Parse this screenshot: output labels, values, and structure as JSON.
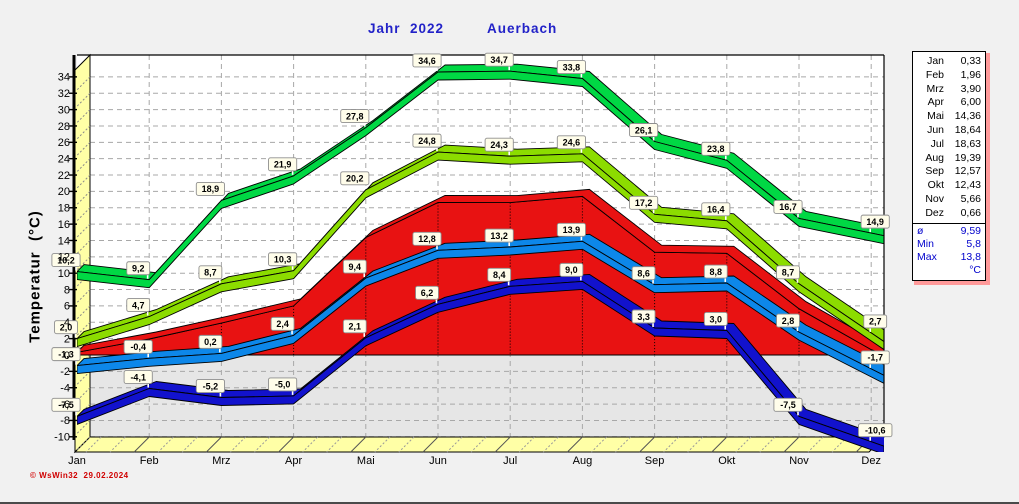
{
  "title": {
    "left": "Jahr  2022",
    "right": "Auerbach"
  },
  "y_axis_title": "Temperatur  (°C)",
  "footer": "© WsWin32  29.02.2024",
  "colors": {
    "title_blue": "#2222c8",
    "legend_stat_blue": "#0000cc",
    "footer_red": "#d00000",
    "abs_max_green": "#00d844",
    "avg_max_green": "#8cdc00",
    "mean_red": "#e81212",
    "avg_min_blue": "#0d87e9",
    "abs_min_blue": "#1212cd",
    "wall_yellow": "#ffffa6",
    "below_zero_gray": "#e6e6e6",
    "grid_gray": "#a8a8a8",
    "label_box_bg": "#fffdea",
    "label_box_border": "#8f8f8f"
  },
  "chart_data": {
    "type": "area",
    "title": "Jahr 2022 Auerbach",
    "xlabel": "",
    "ylabel": "Temperatur (°C)",
    "ylim": [
      -10,
      34
    ],
    "ytick_step": 2,
    "grid": true,
    "legend_position": "right",
    "categories": [
      "Jan",
      "Feb",
      "Mrz",
      "Apr",
      "Mai",
      "Jun",
      "Jul",
      "Aug",
      "Sep",
      "Okt",
      "Nov",
      "Dez"
    ],
    "series": [
      {
        "name": "max",
        "kind": "band",
        "values": [
          10.2,
          9.2,
          18.9,
          21.9,
          27.8,
          34.6,
          34.7,
          33.8,
          26.1,
          23.8,
          16.7,
          14.9
        ],
        "labels": [
          "10,2",
          "9,2",
          "18,9",
          "21,9",
          "27,8",
          "34,6",
          "34,7",
          "33,8",
          "26,1",
          "23,8",
          "16,7",
          "14,9"
        ]
      },
      {
        "name": "avg_max",
        "kind": "band",
        "values": [
          2.0,
          4.7,
          8.7,
          10.3,
          20.2,
          24.8,
          24.3,
          24.6,
          17.2,
          16.4,
          8.7,
          2.7
        ],
        "labels": [
          "2,0",
          "4,7",
          "8,7",
          "10,3",
          "20,2",
          "24,8",
          "24,3",
          "24,6",
          "17,2",
          "16,4",
          "8,7",
          "2,7"
        ]
      },
      {
        "name": "mean",
        "kind": "area",
        "values": [
          0.33,
          1.96,
          3.9,
          6.0,
          14.36,
          18.64,
          18.63,
          19.39,
          12.57,
          12.43,
          5.66,
          0.66
        ],
        "labels": null
      },
      {
        "name": "avg_min",
        "kind": "band",
        "values": [
          -1.3,
          -0.4,
          0.2,
          2.4,
          9.4,
          12.8,
          13.2,
          13.9,
          8.6,
          8.8,
          2.8,
          -1.7
        ],
        "labels": [
          "-1,3",
          "-0,4",
          "0,2",
          "2,4",
          "9,4",
          "12,8",
          "13,2",
          "13,9",
          "8,6",
          "8,8",
          "2,8",
          "-1,7"
        ]
      },
      {
        "name": "min",
        "kind": "band",
        "values": [
          -7.5,
          -4.1,
          -5.2,
          -5.0,
          2.1,
          6.2,
          8.4,
          9.0,
          3.3,
          3.0,
          -7.5,
          -10.6
        ],
        "labels": [
          "-7,5",
          "-4,1",
          "-5,2",
          "-5,0",
          "2,1",
          "6,2",
          "8,4",
          "9,0",
          "3,3",
          "3,0",
          "-7,5",
          "-10,6"
        ]
      }
    ]
  },
  "legend_table": {
    "rows": [
      {
        "label": "Jan",
        "value": "0,33"
      },
      {
        "label": "Feb",
        "value": "1,96"
      },
      {
        "label": "Mrz",
        "value": "3,90"
      },
      {
        "label": "Apr",
        "value": "6,00"
      },
      {
        "label": "Mai",
        "value": "14,36"
      },
      {
        "label": "Jun",
        "value": "18,64"
      },
      {
        "label": "Jul",
        "value": "18,63"
      },
      {
        "label": "Aug",
        "value": "19,39"
      },
      {
        "label": "Sep",
        "value": "12,57"
      },
      {
        "label": "Okt",
        "value": "12,43"
      },
      {
        "label": "Nov",
        "value": "5,66"
      },
      {
        "label": "Dez",
        "value": "0,66"
      }
    ],
    "stats": [
      {
        "label": "ø",
        "value": "9,59"
      },
      {
        "label": "Min",
        "value": "5,8"
      },
      {
        "label": "Max",
        "value": "13,8"
      },
      {
        "label": "",
        "value": "°C"
      }
    ]
  }
}
